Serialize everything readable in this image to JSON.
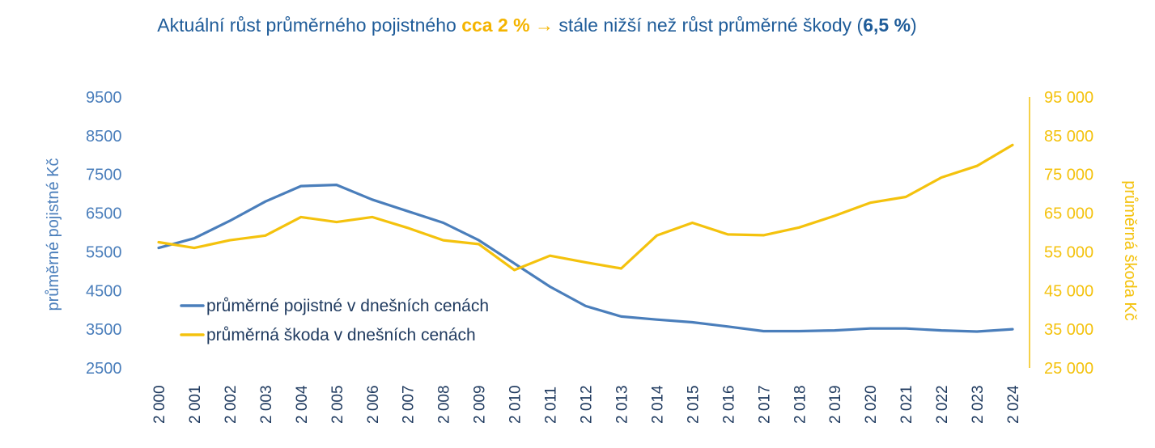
{
  "title": {
    "part1": "Aktuální růst průměrného pojistného ",
    "highlight": "cca 2 %",
    "arrow": "→",
    "part2": " stále nižší než růst průměrné škody (",
    "bold": "6,5 %",
    "part3": ")"
  },
  "chart_data": {
    "type": "line",
    "x": [
      "2 000",
      "2 001",
      "2 002",
      "2 003",
      "2 004",
      "2 005",
      "2 006",
      "2 007",
      "2 008",
      "2 009",
      "2 010",
      "2 011",
      "2 012",
      "2 013",
      "2 014",
      "2 015",
      "2 016",
      "2 017",
      "2 018",
      "2 019",
      "2 020",
      "2 021",
      "2 022",
      "2 023",
      "2 024"
    ],
    "series": [
      {
        "name": "průměrné pojistné v dnešních cenách",
        "axis": "left",
        "color": "#4a7ebb",
        "values": [
          5600,
          5850,
          6300,
          6800,
          7200,
          7230,
          6850,
          6550,
          6250,
          5800,
          5200,
          4600,
          4100,
          3830,
          3750,
          3680,
          3570,
          3450,
          3450,
          3470,
          3520,
          3520,
          3470,
          3440,
          3500
        ]
      },
      {
        "name": "průměrná škoda v dnešních cenách",
        "axis": "right",
        "color": "#f4c20d",
        "values": [
          57500,
          56000,
          58000,
          59200,
          64000,
          62700,
          64000,
          61200,
          58000,
          57000,
          50300,
          54000,
          52300,
          50700,
          59200,
          62500,
          59500,
          59300,
          61300,
          64300,
          67700,
          69200,
          74200,
          77200,
          82600
        ]
      }
    ],
    "y_left": {
      "label": "průměrné pojistné Kč",
      "ylim": [
        2500,
        9500
      ],
      "ticks": [
        "2500",
        "3500",
        "4500",
        "5500",
        "6500",
        "7500",
        "8500",
        "9500"
      ]
    },
    "y_right": {
      "label": "průměrná škoda Kč",
      "ylim": [
        25000,
        95000
      ],
      "ticks": [
        "25 000",
        "35 000",
        "45 000",
        "55 000",
        "65 000",
        "75 000",
        "85 000",
        "95 000"
      ]
    },
    "grid": false,
    "legend_position": "lower-left"
  }
}
